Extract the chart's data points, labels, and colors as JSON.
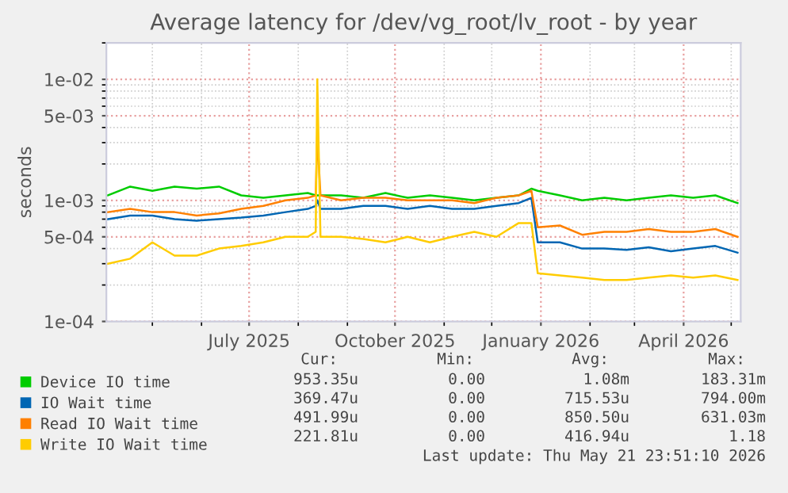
{
  "chart_data": {
    "type": "line",
    "title": "Average latency for /dev/vg_root/lv_root - by year",
    "ylabel": "seconds",
    "x": [
      "2025-04-03",
      "2025-04-17",
      "2025-05-01",
      "2025-05-15",
      "2025-05-29",
      "2025-06-12",
      "2025-06-26",
      "2025-07-10",
      "2025-07-24",
      "2025-08-07",
      "2025-08-12",
      "2025-08-13",
      "2025-08-15",
      "2025-08-28",
      "2025-09-11",
      "2025-09-25",
      "2025-10-09",
      "2025-10-23",
      "2025-11-06",
      "2025-11-20",
      "2025-12-04",
      "2025-12-18",
      "2025-12-26",
      "2025-12-30",
      "2026-01-13",
      "2026-01-27",
      "2026-02-10",
      "2026-02-24",
      "2026-03-10",
      "2026-03-24",
      "2026-04-07",
      "2026-04-21",
      "2026-05-05"
    ],
    "series": [
      {
        "name": "Device IO time",
        "color": "#00cc00",
        "values": [
          0.0011,
          0.0013,
          0.0012,
          0.0013,
          0.00125,
          0.0013,
          0.0011,
          0.00105,
          0.0011,
          0.00115,
          0.0011,
          0.0011,
          0.0011,
          0.0011,
          0.00105,
          0.00115,
          0.00105,
          0.0011,
          0.00105,
          0.001,
          0.00105,
          0.0011,
          0.00125,
          0.0012,
          0.0011,
          0.001,
          0.00105,
          0.001,
          0.00105,
          0.0011,
          0.00105,
          0.0011,
          0.00095
        ]
      },
      {
        "name": "IO Wait time",
        "color": "#0066b3",
        "values": [
          0.0007,
          0.00075,
          0.00075,
          0.0007,
          0.00068,
          0.0007,
          0.00072,
          0.00075,
          0.0008,
          0.00085,
          0.0009,
          0.001,
          0.00085,
          0.00085,
          0.0009,
          0.0009,
          0.00085,
          0.0009,
          0.00085,
          0.00085,
          0.0009,
          0.00095,
          0.00105,
          0.00045,
          0.00045,
          0.0004,
          0.0004,
          0.00039,
          0.00041,
          0.00038,
          0.0004,
          0.00042,
          0.00037
        ]
      },
      {
        "name": "Read IO Wait time",
        "color": "#ff8000",
        "values": [
          0.0008,
          0.00085,
          0.0008,
          0.0008,
          0.00075,
          0.00078,
          0.00085,
          0.0009,
          0.001,
          0.00105,
          0.0011,
          0.0035,
          0.0011,
          0.001,
          0.00105,
          0.00105,
          0.001,
          0.001,
          0.001,
          0.00095,
          0.00105,
          0.0011,
          0.0012,
          0.0006,
          0.00062,
          0.00052,
          0.00055,
          0.00055,
          0.00058,
          0.00055,
          0.00055,
          0.00058,
          0.0005
        ]
      },
      {
        "name": "Write IO Wait time",
        "color": "#ffcc00",
        "values": [
          0.0003,
          0.00033,
          0.00045,
          0.00035,
          0.00035,
          0.0004,
          0.00042,
          0.00045,
          0.0005,
          0.0005,
          0.00055,
          0.01,
          0.0005,
          0.0005,
          0.00048,
          0.00045,
          0.0005,
          0.00045,
          0.0005,
          0.00055,
          0.0005,
          0.00065,
          0.00065,
          0.00025,
          0.00024,
          0.00023,
          0.00022,
          0.00022,
          0.00023,
          0.00024,
          0.00023,
          0.00024,
          0.00022
        ]
      }
    ],
    "log": "y",
    "ylim": [
      0.0001,
      0.02
    ],
    "yticks": [
      {
        "value": 0.0001,
        "label": "1e-04"
      },
      {
        "value": 0.0005,
        "label": "5e-04"
      },
      {
        "value": 0.001,
        "label": "1e-03"
      },
      {
        "value": 0.005,
        "label": "5e-03"
      },
      {
        "value": 0.01,
        "label": "1e-02"
      }
    ],
    "xlim": [
      "2025-04-02",
      "2026-05-07"
    ],
    "xticks": [
      {
        "value": "2025-07-01",
        "label": "July 2025"
      },
      {
        "value": "2025-10-01",
        "label": "October 2025"
      },
      {
        "value": "2026-01-01",
        "label": "January 2026"
      },
      {
        "value": "2026-04-01",
        "label": "April 2026"
      }
    ],
    "grid": true,
    "legend": "bottom",
    "marker": "none",
    "line_style": "solid",
    "annotations": [
      "Cur:",
      "Min:",
      "Avg:",
      "Max:",
      "953.35u",
      "0.00",
      "1.08m",
      "183.31m",
      "369.47u",
      "0.00",
      "715.53u",
      "794.00m",
      "491.99u",
      "0.00",
      "850.50u",
      "631.03m",
      "221.81u",
      "0.00",
      "416.94u",
      "1.18",
      "Last update: Thu May 21 23:51:10 2026"
    ]
  }
}
